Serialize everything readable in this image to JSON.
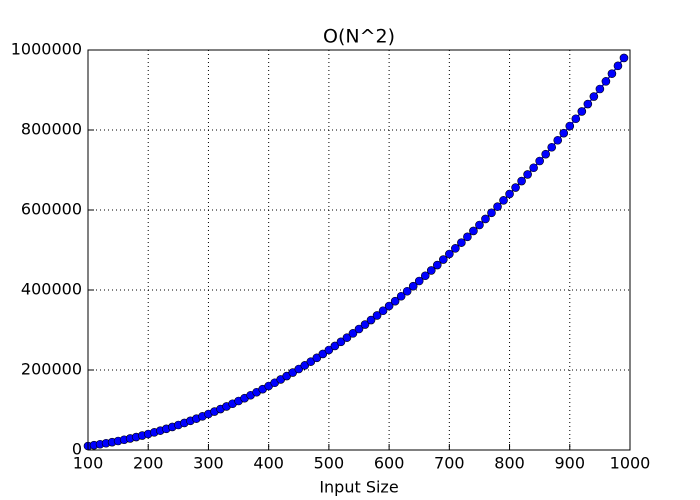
{
  "chart_data": {
    "type": "line",
    "title": "O(N^2)",
    "x_label": "Input Size",
    "x": [
      100,
      110,
      120,
      130,
      140,
      150,
      160,
      170,
      180,
      190,
      200,
      210,
      220,
      230,
      240,
      250,
      260,
      270,
      280,
      290,
      300,
      310,
      320,
      330,
      340,
      350,
      360,
      370,
      380,
      390,
      400,
      410,
      420,
      430,
      440,
      450,
      460,
      470,
      480,
      490,
      500,
      510,
      520,
      530,
      540,
      550,
      560,
      570,
      580,
      590,
      600,
      610,
      620,
      630,
      640,
      650,
      660,
      670,
      680,
      690,
      700,
      710,
      720,
      730,
      740,
      750,
      760,
      770,
      780,
      790,
      800,
      810,
      820,
      830,
      840,
      850,
      860,
      870,
      880,
      890,
      900,
      910,
      920,
      930,
      940,
      950,
      960,
      970,
      980,
      990
    ],
    "values": [
      10000,
      12100,
      14400,
      16900,
      19600,
      22500,
      25600,
      28900,
      32400,
      36100,
      40000,
      44100,
      48400,
      52900,
      57600,
      62500,
      67600,
      72900,
      78400,
      84100,
      90000,
      96100,
      102400,
      108900,
      115600,
      122500,
      129600,
      136900,
      144400,
      152100,
      160000,
      168100,
      176400,
      184900,
      193600,
      202500,
      211600,
      220900,
      230400,
      240100,
      250000,
      260100,
      270400,
      280900,
      291600,
      302500,
      313600,
      324900,
      336400,
      348100,
      360000,
      372100,
      384400,
      396900,
      409600,
      422500,
      435600,
      448900,
      462400,
      476100,
      490000,
      504100,
      518400,
      532900,
      547600,
      562500,
      577600,
      592900,
      608400,
      624100,
      640000,
      656100,
      672400,
      688900,
      705600,
      722500,
      739600,
      756900,
      774400,
      792100,
      810000,
      828100,
      846400,
      864900,
      883600,
      902500,
      921600,
      940900,
      960400,
      980100
    ],
    "color": "#0000ff",
    "marker": true,
    "xlim": [
      100,
      1000
    ],
    "xticks": [
      100,
      200,
      300,
      400,
      500,
      600,
      700,
      800,
      900,
      1000
    ],
    "ylim": [
      0,
      1000000
    ],
    "yticks": [
      0,
      200000,
      400000,
      600000,
      800000,
      1000000
    ],
    "grid": true
  }
}
